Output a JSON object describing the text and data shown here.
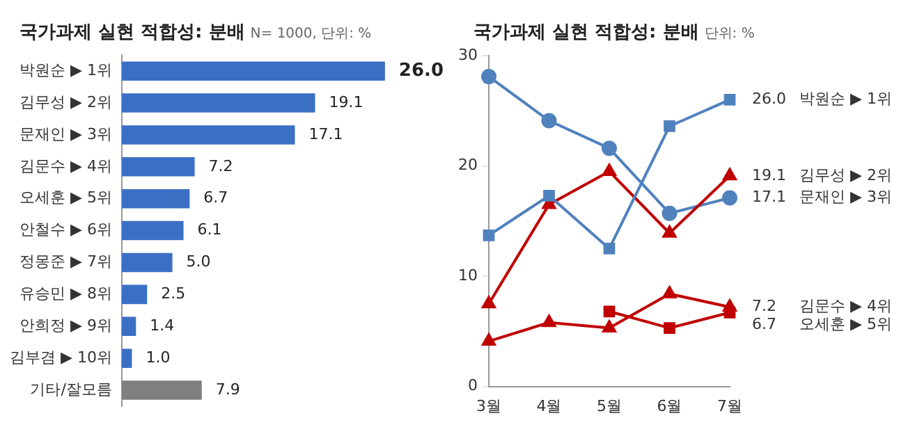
{
  "chart_data": [
    {
      "type": "bar",
      "orientation": "horizontal",
      "title": "국가과제 실현 적합성: 분배",
      "subtitle": "N= 1000, 단위: %",
      "categories": [
        "박원순 ▶ 1위",
        "김무성 ▶ 2위",
        "문재인 ▶ 3위",
        "김문수 ▶ 4위",
        "오세훈 ▶ 5위",
        "안철수 ▶ 6위",
        "정몽준 ▶ 7위",
        "유승민 ▶ 8위",
        "안희정 ▶ 9위",
        "김부겸 ▶ 10위",
        "기타/잘모름"
      ],
      "values": [
        26.0,
        19.1,
        17.1,
        7.2,
        6.7,
        6.1,
        5.0,
        2.5,
        1.4,
        1.0,
        7.9
      ],
      "colors": [
        "#3a6fc4",
        "#3a6fc4",
        "#3a6fc4",
        "#3a6fc4",
        "#3a6fc4",
        "#3a6fc4",
        "#3a6fc4",
        "#3a6fc4",
        "#3a6fc4",
        "#3a6fc4",
        "#7f7f7f"
      ],
      "value_labels": [
        "26.0",
        "19.1",
        "17.1",
        "7.2",
        "6.7",
        "6.1",
        "5.0",
        "2.5",
        "1.4",
        "1.0",
        "7.9"
      ],
      "grid": false,
      "legend": false
    },
    {
      "type": "line",
      "title": "국가과제 실현 적합성: 분배",
      "subtitle": "단위: %",
      "categories": [
        "3월",
        "4월",
        "5월",
        "6월",
        "7월"
      ],
      "ylim": [
        0,
        30
      ],
      "yticks": [
        0,
        10,
        20,
        30
      ],
      "grid": false,
      "legend": false,
      "series": [
        {
          "name": "박원순 ▶ 1위",
          "color": "#4f81bd",
          "marker": "square",
          "values": [
            13.7,
            17.3,
            12.5,
            23.6,
            26.0
          ],
          "value_labels": [
            null,
            null,
            null,
            null,
            "26.0"
          ]
        },
        {
          "name": "김무성 ▶ 2위",
          "color": "#c00000",
          "marker": "triangle",
          "values": [
            7.5,
            16.5,
            19.5,
            13.9,
            19.1
          ],
          "value_labels": [
            null,
            null,
            null,
            null,
            "19.1"
          ]
        },
        {
          "name": "문재인 ▶ 3위",
          "color": "#4f81bd",
          "marker": "circle",
          "values": [
            28.1,
            24.1,
            21.6,
            15.7,
            17.1
          ],
          "value_labels": [
            null,
            null,
            null,
            null,
            "17.1"
          ]
        },
        {
          "name": "김문수 ▶ 4위",
          "color": "#c00000",
          "marker": "triangle",
          "values": [
            4.1,
            5.8,
            5.3,
            8.4,
            7.2
          ],
          "value_labels": [
            null,
            null,
            null,
            null,
            "7.2"
          ]
        },
        {
          "name": "오세훈 ▶ 5위",
          "color": "#c00000",
          "marker": "square",
          "values": [
            null,
            null,
            6.8,
            5.3,
            6.7
          ],
          "value_labels": [
            null,
            null,
            null,
            null,
            "6.7"
          ]
        }
      ]
    }
  ]
}
